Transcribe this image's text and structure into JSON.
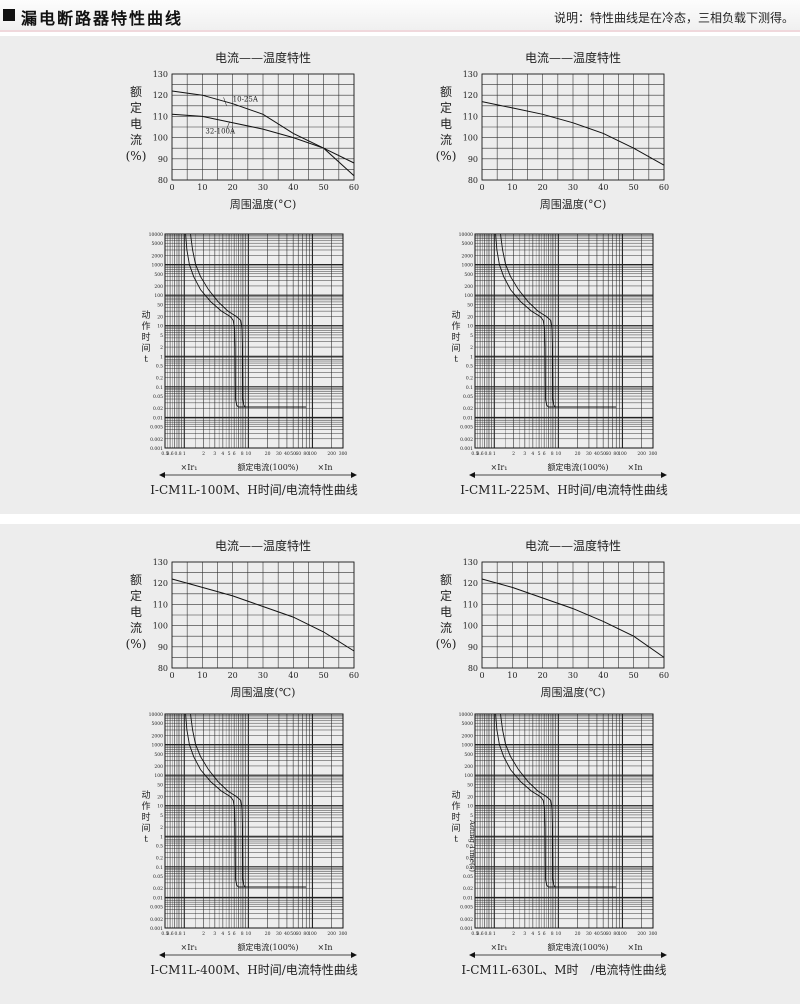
{
  "header": {
    "title": "漏电断路器特性曲线",
    "note": "说明：特性曲线是在冷态，三相负载下测得。"
  },
  "charts": [
    {
      "temp": {
        "title": "电流——温度特性",
        "ylabel": [
          "额",
          "定",
          "电",
          "流",
          "(%)"
        ],
        "xlabel": "周围温度(°C)",
        "yticks": [
          "130",
          "120",
          "110",
          "100",
          "90",
          "80"
        ],
        "xticks": [
          "0",
          "10",
          "20",
          "30",
          "40",
          "50",
          "60"
        ],
        "annotations": [
          "10-25A",
          "32-100A"
        ],
        "curves": [
          [
            [
              0,
              122
            ],
            [
              10,
              120
            ],
            [
              20,
              116
            ],
            [
              30,
              111
            ],
            [
              40,
              102
            ],
            [
              50,
              95
            ],
            [
              60,
              82
            ]
          ],
          [
            [
              0,
              111
            ],
            [
              10,
              110
            ],
            [
              20,
              107
            ],
            [
              30,
              104
            ],
            [
              40,
              100
            ],
            [
              50,
              95
            ],
            [
              60,
              88
            ]
          ]
        ]
      },
      "trip": {
        "ylabel": [
          "动",
          "作",
          "时",
          "间",
          "t"
        ],
        "yticks": [
          "10000",
          "5000",
          "2000",
          "1000",
          "500",
          "200",
          "100",
          "50",
          "20",
          "10",
          "5",
          "2",
          "1",
          "0.5",
          "0.2",
          "0.1",
          "0.05",
          "0.02",
          "0.01",
          "0.005",
          "0.002",
          "0.001"
        ],
        "xticks": [
          "0.5",
          "0.6",
          "0.8",
          "1",
          "2",
          "3",
          "4",
          "5",
          "6",
          "8",
          "10",
          "20",
          "30",
          "40",
          "50",
          "60",
          "80",
          "100",
          "200",
          "300"
        ],
        "legend": {
          "left": "×Ir₁",
          "center": "额定电流(100%)",
          "right": "×In"
        },
        "caption": "I-CM1L-100M、H时间/电流特性曲线"
      }
    },
    {
      "temp": {
        "title": "电流——温度特性",
        "ylabel": [
          "额",
          "定",
          "电",
          "流",
          "(%)"
        ],
        "xlabel": "周围温度(°C)",
        "yticks": [
          "130",
          "120",
          "110",
          "100",
          "90",
          "80"
        ],
        "xticks": [
          "0",
          "10",
          "20",
          "30",
          "40",
          "50",
          "60"
        ],
        "annotations": [],
        "curves": [
          [
            [
              0,
              117
            ],
            [
              10,
              114
            ],
            [
              20,
              111
            ],
            [
              30,
              107
            ],
            [
              40,
              102
            ],
            [
              50,
              95
            ],
            [
              60,
              87
            ]
          ]
        ]
      },
      "trip": {
        "ylabel": [
          "动",
          "作",
          "时",
          "间",
          "t"
        ],
        "yticks": [
          "10000",
          "5000",
          "2000",
          "1000",
          "500",
          "200",
          "100",
          "50",
          "20",
          "10",
          "5",
          "2",
          "1",
          "0.5",
          "0.2",
          "0.1",
          "0.05",
          "0.02",
          "0.01",
          "0.005",
          "0.002",
          "0.001"
        ],
        "xticks": [
          "0.5",
          "0.6",
          "0.8",
          "1",
          "2",
          "3",
          "4",
          "5",
          "6",
          "8",
          "10",
          "20",
          "30",
          "40",
          "50",
          "60",
          "80",
          "100",
          "200",
          "300"
        ],
        "legend": {
          "left": "×Ir₁",
          "center": "额定电流(100%)",
          "right": "×In"
        },
        "caption": "I-CM1L-225M、H时间/电流特性曲线"
      }
    },
    {
      "temp": {
        "title": "电流——温度特性",
        "ylabel": [
          "额",
          "定",
          "电",
          "流",
          "(%)"
        ],
        "xlabel": "周围温度(℃)",
        "yticks": [
          "130",
          "120",
          "110",
          "100",
          "90",
          "80"
        ],
        "xticks": [
          "0",
          "10",
          "20",
          "30",
          "40",
          "50",
          "60"
        ],
        "annotations": [],
        "curves": [
          [
            [
              0,
              122
            ],
            [
              10,
              118
            ],
            [
              20,
              114
            ],
            [
              30,
              109
            ],
            [
              40,
              104
            ],
            [
              50,
              97
            ],
            [
              60,
              88
            ]
          ]
        ]
      },
      "trip": {
        "ylabel": [
          "动",
          "作",
          "时",
          "间",
          "t"
        ],
        "yticks": [
          "10000",
          "5000",
          "2000",
          "1000",
          "500",
          "200",
          "100",
          "50",
          "20",
          "10",
          "5",
          "2",
          "1",
          "0.5",
          "0.2",
          "0.1",
          "0.05",
          "0.02",
          "0.01",
          "0.005",
          "0.002",
          "0.001"
        ],
        "xticks": [
          "0.5",
          "0.6",
          "0.8",
          "1",
          "2",
          "3",
          "4",
          "5",
          "6",
          "8",
          "10",
          "20",
          "30",
          "40",
          "50",
          "60",
          "80",
          "100",
          "200",
          "300"
        ],
        "legend": {
          "left": "×Ir₁",
          "center": "额定电流(100%)",
          "right": "×In"
        },
        "caption": "I-CM1L-400M、H时间/电流特性曲线"
      }
    },
    {
      "temp": {
        "title": "电流——温度特性",
        "ylabel": [
          "额",
          "定",
          "电",
          "流",
          "(%)"
        ],
        "xlabel": "周围温度(℃)",
        "yticks": [
          "130",
          "120",
          "110",
          "100",
          "90",
          "80"
        ],
        "xticks": [
          "0",
          "10",
          "20",
          "30",
          "40",
          "50",
          "60"
        ],
        "annotations": [],
        "curves": [
          [
            [
              0,
              122
            ],
            [
              10,
              118
            ],
            [
              20,
              113
            ],
            [
              30,
              108
            ],
            [
              40,
              102
            ],
            [
              50,
              95
            ],
            [
              60,
              85
            ]
          ]
        ]
      },
      "trip": {
        "ylabel": [
          "动",
          "作",
          "时",
          "间",
          "t"
        ],
        "yticks": [
          "10000",
          "5000",
          "2000",
          "1000",
          "500",
          "200",
          "100",
          "50",
          "20",
          "10",
          "5",
          "2",
          "1",
          "0.5",
          "0.2",
          "0.1",
          "0.05",
          "0.02",
          "0.01",
          "0.005",
          "0.002",
          "0.001"
        ],
        "xticks": [
          "0.5",
          "0.6",
          "0.8",
          "1",
          "2",
          "3",
          "4",
          "5",
          "6",
          "8",
          "10",
          "20",
          "30",
          "40",
          "50",
          "60",
          "80",
          "100",
          "200",
          "300"
        ],
        "legend": {
          "left": "×Ir₁",
          "center": "额定电流(100%)",
          "right": "×In"
        },
        "caption": "I-CM1L-630L、M时　/电流特性曲线",
        "ylabel_en": "Acting Time(s)"
      }
    }
  ]
}
